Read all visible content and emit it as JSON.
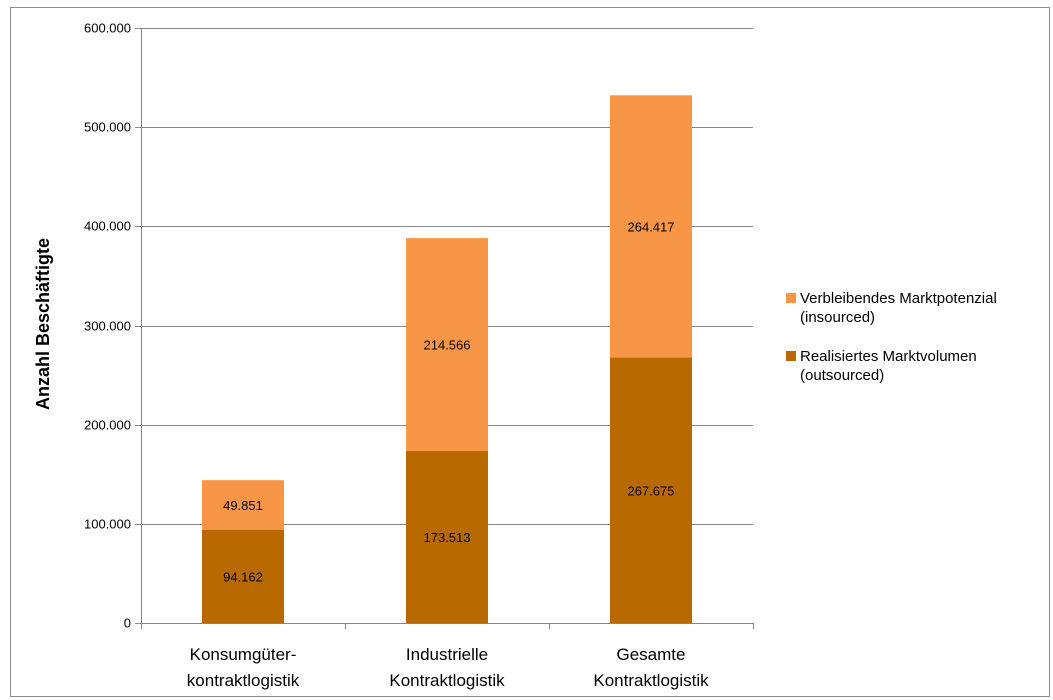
{
  "chart_data": {
    "type": "bar",
    "stacked": true,
    "title": "",
    "xlabel": "",
    "ylabel": "Anzahl Beschäftigte",
    "ylim": [
      0,
      600000
    ],
    "yticks": [
      {
        "value": 0,
        "label": "0"
      },
      {
        "value": 100000,
        "label": "100.000"
      },
      {
        "value": 200000,
        "label": "200.000"
      },
      {
        "value": 300000,
        "label": "300.000"
      },
      {
        "value": 400000,
        "label": "400.000"
      },
      {
        "value": 500000,
        "label": "500.000"
      },
      {
        "value": 600000,
        "label": "600.000"
      }
    ],
    "categories": [
      [
        "Konsumgüter-",
        "kontraktlogistik"
      ],
      [
        "Industrielle",
        "Kontraktlogistik"
      ],
      [
        "Gesamte",
        "Kontraktlogistik"
      ]
    ],
    "series": [
      {
        "name": [
          "Realisiertes Marktvolumen",
          "(outsourced)"
        ],
        "color": "#b86a00",
        "values": [
          94162,
          173513,
          267675
        ],
        "labels": [
          "94.162",
          "173.513",
          "267.675"
        ]
      },
      {
        "name": [
          "Verbleibendes Marktpotenzial",
          "(insourced)"
        ],
        "color": "#f79646",
        "values": [
          49851,
          214566,
          264417
        ],
        "labels": [
          "49.851",
          "214.566",
          "264.417"
        ]
      }
    ],
    "legend": {
      "position": "right",
      "order": [
        1,
        0
      ]
    },
    "grid": true
  }
}
